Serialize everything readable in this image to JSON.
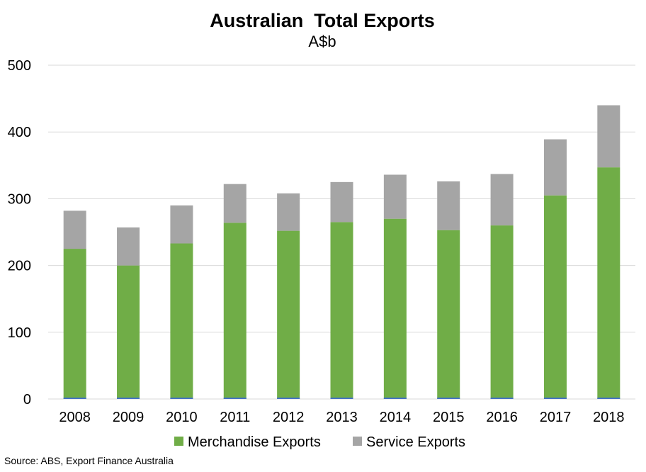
{
  "chart_data": {
    "type": "bar",
    "stacked": true,
    "title": "Australian  Total Exports",
    "subtitle": "A$b",
    "categories": [
      "2008",
      "2009",
      "2010",
      "2011",
      "2012",
      "2013",
      "2014",
      "2015",
      "2016",
      "2017",
      "2018"
    ],
    "series": [
      {
        "name": "Merchandise Exports",
        "color": "#70ad47",
        "values": [
          225,
          200,
          233,
          264,
          252,
          265,
          270,
          253,
          260,
          305,
          347
        ]
      },
      {
        "name": "Service Exports",
        "color": "#a5a5a5",
        "values": [
          57,
          57,
          57,
          58,
          56,
          60,
          66,
          73,
          77,
          84,
          93
        ]
      }
    ],
    "baseline_color": "#4472c4",
    "ylim": [
      0,
      500
    ],
    "yticks": [
      "0",
      "100",
      "200",
      "300",
      "400",
      "500"
    ],
    "grid": true,
    "legend": "bottom",
    "source": "Source: ABS, Export Finance Australia"
  }
}
